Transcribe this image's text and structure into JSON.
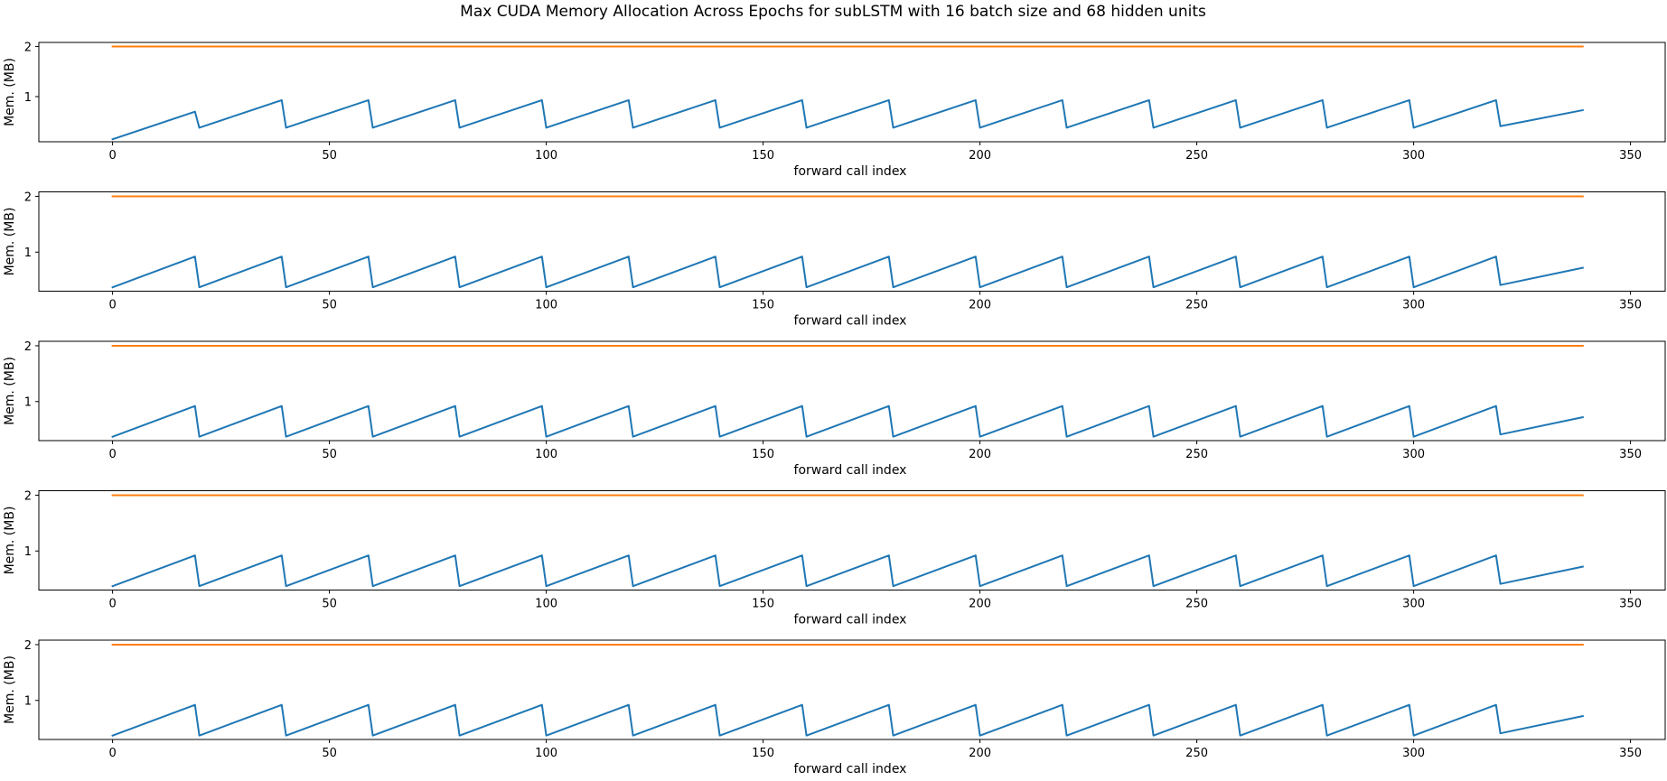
{
  "figure": {
    "title": "Max CUDA Memory Allocation Across Epochs for subLSTM with 16 batch size and 68 hidden units"
  },
  "colors": {
    "series_blue": "#1f77b4",
    "series_orange": "#ff7f0e",
    "axes": "#000000",
    "background": "#ffffff"
  },
  "chart_data": [
    {
      "type": "line",
      "title": "",
      "xlabel": "forward call index",
      "ylabel": "Mem. (MB)",
      "xlim": [
        -17,
        358
      ],
      "ylim": [
        0.1,
        2.08
      ],
      "xticks": [
        0,
        50,
        100,
        150,
        200,
        250,
        300,
        350
      ],
      "yticks": [
        1,
        2
      ],
      "grid": false,
      "series": [
        {
          "color": "#1f77b4",
          "x": [
            0,
            19,
            20,
            39,
            40,
            59,
            60,
            79,
            80,
            99,
            100,
            119,
            120,
            139,
            140,
            159,
            160,
            179,
            180,
            199,
            200,
            219,
            220,
            239,
            240,
            259,
            260,
            279,
            280,
            299,
            300,
            319,
            320,
            339
          ],
          "y": [
            0.15,
            0.7,
            0.38,
            0.93,
            0.38,
            0.93,
            0.38,
            0.93,
            0.38,
            0.93,
            0.38,
            0.93,
            0.38,
            0.93,
            0.38,
            0.93,
            0.38,
            0.93,
            0.38,
            0.93,
            0.38,
            0.93,
            0.38,
            0.93,
            0.38,
            0.93,
            0.38,
            0.93,
            0.38,
            0.93,
            0.38,
            0.93,
            0.41,
            0.73
          ]
        },
        {
          "color": "#ff7f0e",
          "x": [
            0,
            339
          ],
          "y": [
            2.0,
            2.0
          ]
        }
      ]
    },
    {
      "type": "line",
      "title": "",
      "xlabel": "forward call index",
      "ylabel": "Mem. (MB)",
      "xlim": [
        -17,
        358
      ],
      "ylim": [
        0.3,
        2.08
      ],
      "xticks": [
        0,
        50,
        100,
        150,
        200,
        250,
        300,
        350
      ],
      "yticks": [
        1,
        2
      ],
      "grid": false,
      "series": [
        {
          "color": "#1f77b4",
          "x": [
            0,
            19,
            20,
            39,
            40,
            59,
            60,
            79,
            80,
            99,
            100,
            119,
            120,
            139,
            140,
            159,
            160,
            179,
            180,
            199,
            200,
            219,
            220,
            239,
            240,
            259,
            260,
            279,
            280,
            299,
            300,
            319,
            320,
            339
          ],
          "y": [
            0.37,
            0.92,
            0.37,
            0.92,
            0.37,
            0.92,
            0.37,
            0.92,
            0.37,
            0.92,
            0.37,
            0.92,
            0.37,
            0.92,
            0.37,
            0.92,
            0.37,
            0.92,
            0.37,
            0.92,
            0.37,
            0.92,
            0.37,
            0.92,
            0.37,
            0.92,
            0.37,
            0.92,
            0.37,
            0.92,
            0.37,
            0.92,
            0.41,
            0.72
          ]
        },
        {
          "color": "#ff7f0e",
          "x": [
            0,
            339
          ],
          "y": [
            2.0,
            2.0
          ]
        }
      ]
    },
    {
      "type": "line",
      "title": "",
      "xlabel": "forward call index",
      "ylabel": "Mem. (MB)",
      "xlim": [
        -17,
        358
      ],
      "ylim": [
        0.3,
        2.08
      ],
      "xticks": [
        0,
        50,
        100,
        150,
        200,
        250,
        300,
        350
      ],
      "yticks": [
        1,
        2
      ],
      "grid": false,
      "series": [
        {
          "color": "#1f77b4",
          "x": [
            0,
            19,
            20,
            39,
            40,
            59,
            60,
            79,
            80,
            99,
            100,
            119,
            120,
            139,
            140,
            159,
            160,
            179,
            180,
            199,
            200,
            219,
            220,
            239,
            240,
            259,
            260,
            279,
            280,
            299,
            300,
            319,
            320,
            339
          ],
          "y": [
            0.37,
            0.92,
            0.37,
            0.92,
            0.37,
            0.92,
            0.37,
            0.92,
            0.37,
            0.92,
            0.37,
            0.92,
            0.37,
            0.92,
            0.37,
            0.92,
            0.37,
            0.92,
            0.37,
            0.92,
            0.37,
            0.92,
            0.37,
            0.92,
            0.37,
            0.92,
            0.37,
            0.92,
            0.37,
            0.92,
            0.37,
            0.92,
            0.41,
            0.72
          ]
        },
        {
          "color": "#ff7f0e",
          "x": [
            0,
            339
          ],
          "y": [
            2.0,
            2.0
          ]
        }
      ]
    },
    {
      "type": "line",
      "title": "",
      "xlabel": "forward call index",
      "ylabel": "Mem. (MB)",
      "xlim": [
        -17,
        358
      ],
      "ylim": [
        0.3,
        2.08
      ],
      "xticks": [
        0,
        50,
        100,
        150,
        200,
        250,
        300,
        350
      ],
      "yticks": [
        1,
        2
      ],
      "grid": false,
      "series": [
        {
          "color": "#1f77b4",
          "x": [
            0,
            19,
            20,
            39,
            40,
            59,
            60,
            79,
            80,
            99,
            100,
            119,
            120,
            139,
            140,
            159,
            160,
            179,
            180,
            199,
            200,
            219,
            220,
            239,
            240,
            259,
            260,
            279,
            280,
            299,
            300,
            319,
            320,
            339
          ],
          "y": [
            0.37,
            0.92,
            0.37,
            0.92,
            0.37,
            0.92,
            0.37,
            0.92,
            0.37,
            0.92,
            0.37,
            0.92,
            0.37,
            0.92,
            0.37,
            0.92,
            0.37,
            0.92,
            0.37,
            0.92,
            0.37,
            0.92,
            0.37,
            0.92,
            0.37,
            0.92,
            0.37,
            0.92,
            0.37,
            0.92,
            0.37,
            0.92,
            0.41,
            0.72
          ]
        },
        {
          "color": "#ff7f0e",
          "x": [
            0,
            339
          ],
          "y": [
            2.0,
            2.0
          ]
        }
      ]
    },
    {
      "type": "line",
      "title": "",
      "xlabel": "forward call index",
      "ylabel": "Mem. (MB)",
      "xlim": [
        -17,
        358
      ],
      "ylim": [
        0.3,
        2.08
      ],
      "xticks": [
        0,
        50,
        100,
        150,
        200,
        250,
        300,
        350
      ],
      "yticks": [
        1,
        2
      ],
      "grid": false,
      "series": [
        {
          "color": "#1f77b4",
          "x": [
            0,
            19,
            20,
            39,
            40,
            59,
            60,
            79,
            80,
            99,
            100,
            119,
            120,
            139,
            140,
            159,
            160,
            179,
            180,
            199,
            200,
            219,
            220,
            239,
            240,
            259,
            260,
            279,
            280,
            299,
            300,
            319,
            320,
            339
          ],
          "y": [
            0.37,
            0.92,
            0.37,
            0.92,
            0.37,
            0.92,
            0.37,
            0.92,
            0.37,
            0.92,
            0.37,
            0.92,
            0.37,
            0.92,
            0.37,
            0.92,
            0.37,
            0.92,
            0.37,
            0.92,
            0.37,
            0.92,
            0.37,
            0.92,
            0.37,
            0.92,
            0.37,
            0.92,
            0.37,
            0.92,
            0.37,
            0.92,
            0.41,
            0.72
          ]
        },
        {
          "color": "#ff7f0e",
          "x": [
            0,
            339
          ],
          "y": [
            2.0,
            2.0
          ]
        }
      ]
    }
  ]
}
